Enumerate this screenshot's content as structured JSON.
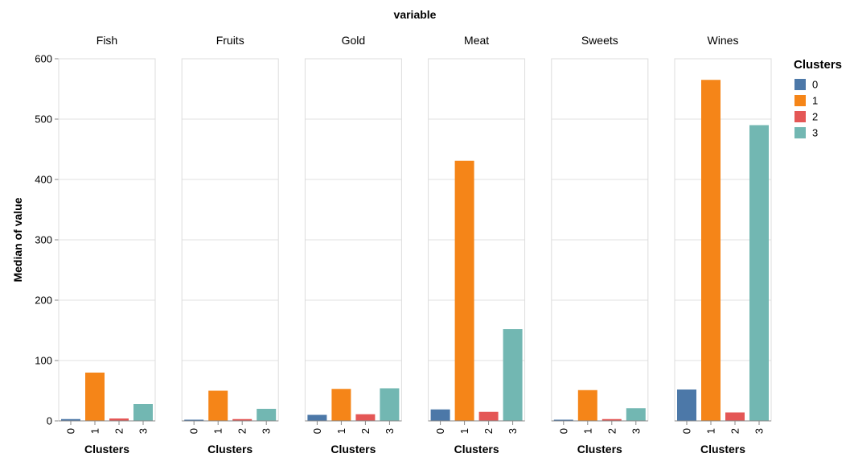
{
  "chart_data": {
    "type": "bar",
    "facet_title": "variable",
    "facets": [
      "Fish",
      "Fruits",
      "Gold",
      "Meat",
      "Sweets",
      "Wines"
    ],
    "categories": [
      "0",
      "1",
      "2",
      "3"
    ],
    "xlabel": "Clusters",
    "ylabel": "Median of value",
    "ylim": [
      0,
      600
    ],
    "yticks": [
      0,
      100,
      200,
      300,
      400,
      500,
      600
    ],
    "grid": true,
    "legend": {
      "title": "Clusters",
      "position": "right",
      "entries": [
        {
          "label": "0",
          "color": "#4c78a8"
        },
        {
          "label": "1",
          "color": "#f58518"
        },
        {
          "label": "2",
          "color": "#e45756"
        },
        {
          "label": "3",
          "color": "#72b7b2"
        }
      ]
    },
    "values": {
      "Fish": [
        3,
        80,
        4,
        28
      ],
      "Fruits": [
        2,
        50,
        3,
        20
      ],
      "Gold": [
        10,
        53,
        11,
        54
      ],
      "Meat": [
        19,
        431,
        15,
        152
      ],
      "Sweets": [
        2,
        51,
        3,
        21
      ],
      "Wines": [
        52,
        565,
        14,
        490
      ]
    }
  }
}
